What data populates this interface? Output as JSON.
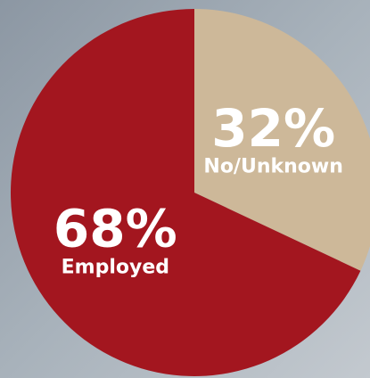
{
  "chart_data": {
    "type": "pie",
    "categories": [
      "No/Unknown",
      "Employed"
    ],
    "values": [
      32,
      68
    ],
    "value_labels": [
      "32%",
      "68%"
    ],
    "colors": [
      "#cdb899",
      "#a3161f"
    ]
  }
}
